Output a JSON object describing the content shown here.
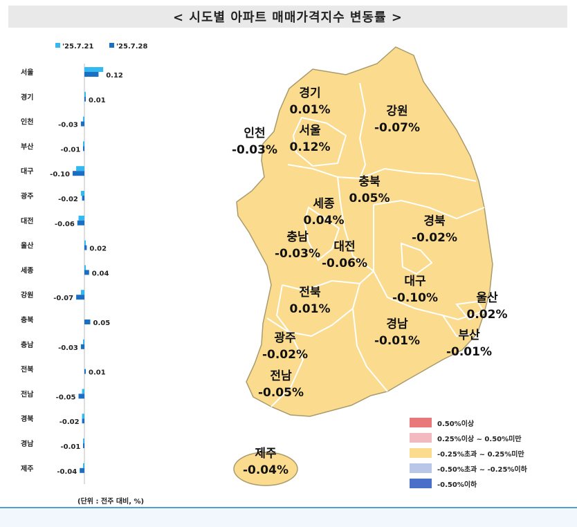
{
  "title": "< 시도별 아파트 매매가격지수 변동률 >",
  "chart_data": {
    "type": "bar",
    "orientation": "horizontal",
    "categories": [
      "서울",
      "경기",
      "인천",
      "부산",
      "대구",
      "광주",
      "대전",
      "울산",
      "세종",
      "강원",
      "충북",
      "충남",
      "전북",
      "전남",
      "경북",
      "경남",
      "제주"
    ],
    "series": [
      {
        "name": "'25.7.21",
        "color": "#33b8f0",
        "values": [
          0.16,
          0.01,
          -0.01,
          -0.01,
          -0.07,
          -0.03,
          -0.05,
          0.01,
          0.01,
          -0.03,
          0.0,
          -0.01,
          0.0,
          -0.02,
          -0.02,
          -0.01,
          -0.01
        ]
      },
      {
        "name": "'25.7.28",
        "color": "#1b6fc2",
        "values": [
          0.12,
          0.01,
          -0.03,
          -0.01,
          -0.1,
          -0.02,
          -0.06,
          0.02,
          0.04,
          -0.07,
          0.05,
          -0.03,
          0.01,
          -0.05,
          -0.02,
          -0.01,
          -0.04
        ]
      }
    ],
    "data_labels": [
      "0.12",
      "0.01",
      "-0.03",
      "-0.01",
      "-0.10",
      "-0.02",
      "-0.06",
      "0.02",
      "0.04",
      "-0.07",
      "0.05",
      "-0.03",
      "0.01",
      "-0.05",
      "-0.02",
      "-0.01",
      "-0.04"
    ],
    "unit_note": "(단위 : 전주 대비, %)",
    "legend_position": "top-left"
  },
  "map": {
    "regions": [
      {
        "name": "경기",
        "value": "0.01%"
      },
      {
        "name": "강원",
        "value": "-0.07%"
      },
      {
        "name": "인천",
        "value": "-0.03%"
      },
      {
        "name": "서울",
        "value": "0.12%"
      },
      {
        "name": "충북",
        "value": "0.05%"
      },
      {
        "name": "세종",
        "value": "0.04%"
      },
      {
        "name": "경북",
        "value": "-0.02%"
      },
      {
        "name": "충남",
        "value": "-0.03%"
      },
      {
        "name": "대전",
        "value": "-0.06%"
      },
      {
        "name": "대구",
        "value": "-0.10%"
      },
      {
        "name": "울산",
        "value": "0.02%"
      },
      {
        "name": "전북",
        "value": "0.01%"
      },
      {
        "name": "경남",
        "value": "-0.01%"
      },
      {
        "name": "부산",
        "value": "-0.01%"
      },
      {
        "name": "광주",
        "value": "-0.02%"
      },
      {
        "name": "전남",
        "value": "-0.05%"
      },
      {
        "name": "제주",
        "value": "-0.04%"
      }
    ],
    "fill_color": "#fbdc8e",
    "legend": [
      {
        "label": "0.50%이상",
        "color": "#e8787a"
      },
      {
        "label": "0.25%이상 ~ 0.50%미만",
        "color": "#f2b9c0"
      },
      {
        "label": "-0.25%초과 ~ 0.25%미만",
        "color": "#fbdc8e"
      },
      {
        "label": "-0.50%초과 ~ -0.25%이하",
        "color": "#b9c6e8"
      },
      {
        "label": "-0.50%이하",
        "color": "#4a6fc8"
      }
    ]
  }
}
